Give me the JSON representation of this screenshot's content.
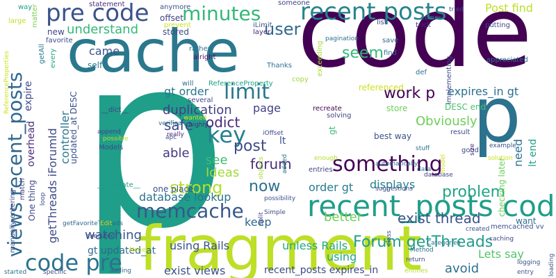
{
  "words": [
    {
      "text": "p",
      "color": "#1f9e89"
    },
    {
      "text": "code",
      "color": "#440154"
    },
    {
      "text": "fragment",
      "color": "#bddf26"
    },
    {
      "text": "cache",
      "color": "#2a788e"
    },
    {
      "text": "p",
      "color": "#2c728e"
    },
    {
      "text": "recent_posts code",
      "color": "#1f9e89"
    },
    {
      "text": "recent posts",
      "color": "#25858e"
    },
    {
      "text": "pre code",
      "color": "#3b528b"
    },
    {
      "text": "minutes",
      "color": "#35b779"
    },
    {
      "text": "code pre",
      "color": "#2c728e"
    },
    {
      "text": "memcache",
      "color": "#38588c"
    },
    {
      "text": "something",
      "color": "#440154"
    },
    {
      "text": "key",
      "color": "#26828e"
    },
    {
      "text": "limit",
      "color": "#2a788e"
    },
    {
      "text": "views recent_posts",
      "color": "#31688e"
    },
    {
      "text": "strong",
      "color": "#b5de2b"
    },
    {
      "text": "Forum getThreads",
      "color": "#1f9e89"
    },
    {
      "text": "user",
      "color": "#31688e"
    },
    {
      "text": "post",
      "color": "#3e4a89"
    },
    {
      "text": "now",
      "color": "#2d708e"
    },
    {
      "text": "forum",
      "color": "#472d7b"
    },
    {
      "text": "odict",
      "color": "#482878"
    },
    {
      "text": "seem",
      "color": "#35b779"
    },
    {
      "text": "work p",
      "color": "#440154"
    },
    {
      "text": "problem",
      "color": "#20a486"
    },
    {
      "text": "Obviously",
      "color": "#6ece58"
    },
    {
      "text": "exist thread",
      "color": "#3b528b"
    },
    {
      "text": "understand",
      "color": "#35b779"
    },
    {
      "text": "Post find",
      "color": "#bddf26"
    },
    {
      "text": "expires_in gt",
      "color": "#2d708e"
    },
    {
      "text": "duplication",
      "color": "#433e85"
    },
    {
      "text": "safe",
      "color": "#3e4989"
    },
    {
      "text": "able",
      "color": "#443983"
    },
    {
      "text": "see",
      "color": "#3dbc74"
    },
    {
      "text": "Ideas",
      "color": "#a0da39"
    },
    {
      "text": "page",
      "color": "#424086"
    },
    {
      "text": "gt order",
      "color": "#2a788e"
    },
    {
      "text": "database lookup",
      "color": "#2c728e"
    },
    {
      "text": "displays",
      "color": "#26828e"
    },
    {
      "text": "order gt",
      "color": "#287c8e"
    },
    {
      "text": "keep",
      "color": "#31688e"
    },
    {
      "text": "better",
      "color": "#6ece58"
    },
    {
      "text": "using",
      "color": "#20a486"
    },
    {
      "text": "Lets say",
      "color": "#52c569"
    },
    {
      "text": "avoid",
      "color": "#2e6e8e"
    },
    {
      "text": "watching",
      "color": "#38588c"
    },
    {
      "text": "using Rails",
      "color": "#3b528b"
    },
    {
      "text": "unless Rails",
      "color": "#22a884"
    },
    {
      "text": "exist views",
      "color": "#3b528b"
    },
    {
      "text": "recent_posts expires_in",
      "color": "#3e4989"
    },
    {
      "text": "gt updated_at",
      "color": "#31688e"
    },
    {
      "text": "came",
      "color": "#3b528b"
    },
    {
      "text": "self",
      "color": "#2a788e"
    },
    {
      "text": "stored",
      "color": "#3e4989"
    },
    {
      "text": "offset",
      "color": "#414487"
    },
    {
      "text": "statement",
      "color": "#472d7b"
    },
    {
      "text": "new",
      "color": "#414487"
    },
    {
      "text": "favorite",
      "color": "#3e4989"
    },
    {
      "text": "every",
      "color": "#22a884"
    },
    {
      "text": "getAll",
      "color": "#2a788e"
    },
    {
      "text": "large",
      "color": "#bddf26"
    },
    {
      "text": "matter",
      "color": "#7ad151"
    },
    {
      "text": "way",
      "color": "#1fa187"
    },
    {
      "text": "anymore",
      "color": "#3b528b"
    },
    {
      "text": "prevent",
      "color": "#cde11d"
    },
    {
      "text": "will",
      "color": "#2d708e"
    },
    {
      "text": "rather",
      "color": "#2c728e"
    },
    {
      "text": "alright",
      "color": "#471063"
    },
    {
      "text": "Thanks",
      "color": "#2c728e"
    },
    {
      "text": "iLimit",
      "color": "#3b528b"
    },
    {
      "text": "layer",
      "color": "#482878"
    },
    {
      "text": "someone",
      "color": "#414487"
    },
    {
      "text": "pagination",
      "color": "#2d708e"
    },
    {
      "text": "ID",
      "color": "#440154"
    },
    {
      "text": "list",
      "color": "#3e4989"
    },
    {
      "text": "exceeding",
      "color": "#a5db36"
    },
    {
      "text": "save",
      "color": "#31688e"
    },
    {
      "text": "find",
      "color": "#2d708e"
    },
    {
      "text": "comes",
      "color": "#2c728e"
    },
    {
      "text": "trick",
      "color": "#472d7b"
    },
    {
      "text": "tried",
      "color": "#3e4989"
    },
    {
      "text": "putting",
      "color": "#3e4989"
    },
    {
      "text": "appreciated",
      "color": "#2d708e"
    },
    {
      "text": "def",
      "color": "#2c728e"
    },
    {
      "text": "implementing",
      "color": "#3e4989"
    },
    {
      "text": "ReferenceProperty",
      "color": "#1fa187"
    },
    {
      "text": "ReferenceProperties",
      "color": "#cde11d"
    },
    {
      "text": "copy",
      "color": "#a0da39"
    },
    {
      "text": "referenced",
      "color": "#cde11d"
    },
    {
      "text": "store",
      "color": "#6ece58"
    },
    {
      "text": "DESC end",
      "color": "#4ac16d"
    },
    {
      "text": "need",
      "color": "#2c728e"
    },
    {
      "text": "lt end",
      "color": "#1f9e89"
    },
    {
      "text": "controller",
      "color": "#2a788e"
    },
    {
      "text": "updated_at DESC",
      "color": "#3b528b"
    },
    {
      "text": "getThreads iForumId",
      "color": "#3e4989"
    },
    {
      "text": "expire",
      "color": "#3e4989"
    },
    {
      "text": "overhead",
      "color": "#482878"
    },
    {
      "text": "One thing",
      "color": "#414487"
    },
    {
      "text": "getFavoriteThreads",
      "color": "#31688e"
    },
    {
      "text": "manually entering",
      "color": "#3b528b"
    },
    {
      "text": "match",
      "color": "#414487"
    },
    {
      "text": "Models",
      "color": "#3e4989"
    },
    {
      "text": "__dict__",
      "color": "#414487"
    },
    {
      "text": "append",
      "color": "#414487"
    },
    {
      "text": "possible",
      "color": "#b5de2b"
    },
    {
      "text": "verified",
      "color": "#2d708e"
    },
    {
      "text": "apc",
      "color": "#3b528b"
    },
    {
      "text": "really",
      "color": "#482878"
    },
    {
      "text": "highly",
      "color": "#472d7b"
    },
    {
      "text": "several",
      "color": "#3e4989"
    },
    {
      "text": "wanted",
      "color": "#cde11d"
    },
    {
      "text": "iOffset",
      "color": "#3e4989"
    },
    {
      "text": "objects",
      "color": "#a0da39"
    },
    {
      "text": "possibility",
      "color": "#3b528b"
    },
    {
      "text": "added",
      "color": "#2a788e"
    },
    {
      "text": "lt",
      "color": "#3b528b"
    },
    {
      "text": "gt",
      "color": "#35b779"
    },
    {
      "text": "__getstate__",
      "color": "#1f9e89"
    },
    {
      "text": "one place",
      "color": "#3b528b"
    },
    {
      "text": "recreate",
      "color": "#440154"
    },
    {
      "text": "solving",
      "color": "#414487"
    },
    {
      "text": "entries",
      "color": "#414487"
    },
    {
      "text": "enough",
      "color": "#b5de2b"
    },
    {
      "text": "automatically",
      "color": "#2d708e"
    },
    {
      "text": "data",
      "color": "#2d708e"
    },
    {
      "text": "database",
      "color": "#414487"
    },
    {
      "text": "model",
      "color": "#cde11d"
    },
    {
      "text": "best way",
      "color": "#3b528b"
    },
    {
      "text": "stuff",
      "color": "#2d708e"
    },
    {
      "text": "result",
      "color": "#3e4989"
    },
    {
      "text": "good",
      "color": "#3e4989"
    },
    {
      "text": "size",
      "color": "#482878"
    },
    {
      "text": "suggestions",
      "color": "#3e4989"
    },
    {
      "text": "example",
      "color": "#3b528b"
    },
    {
      "text": "solution",
      "color": "#cde11d"
    },
    {
      "text": "checking later",
      "color": "#6ece58"
    },
    {
      "text": "want",
      "color": "#2d708e"
    },
    {
      "text": "memcached vv",
      "color": "#3b528b"
    },
    {
      "text": "created",
      "color": "#3b528b"
    },
    {
      "text": "caching",
      "color": "#414487"
    },
    {
      "text": "class",
      "color": "#3b528b"
    },
    {
      "text": "Categories",
      "color": "#2d708e"
    },
    {
      "text": "Method",
      "color": "#2c728e"
    },
    {
      "text": "return",
      "color": "#414487"
    },
    {
      "text": "logging",
      "color": "#3b528b"
    },
    {
      "text": "entry",
      "color": "#3b528b"
    },
    {
      "text": "loading",
      "color": "#3b528b"
    },
    {
      "text": "entities",
      "color": "#b5de2b"
    },
    {
      "text": "Edit",
      "color": "#cde11d"
    },
    {
      "text": "executed",
      "color": "#414487"
    },
    {
      "text": "None",
      "color": "#cde11d"
    },
    {
      "text": "adding",
      "color": "#31688e"
    },
    {
      "text": "specific",
      "color": "#3e4989"
    },
    {
      "text": "started",
      "color": "#2d708e"
    },
    {
      "text": "loop",
      "color": "#3e4989"
    },
    {
      "text": "Simple",
      "color": "#3e4989"
    },
    {
      "text": "split",
      "color": "#414487"
    }
  ]
}
